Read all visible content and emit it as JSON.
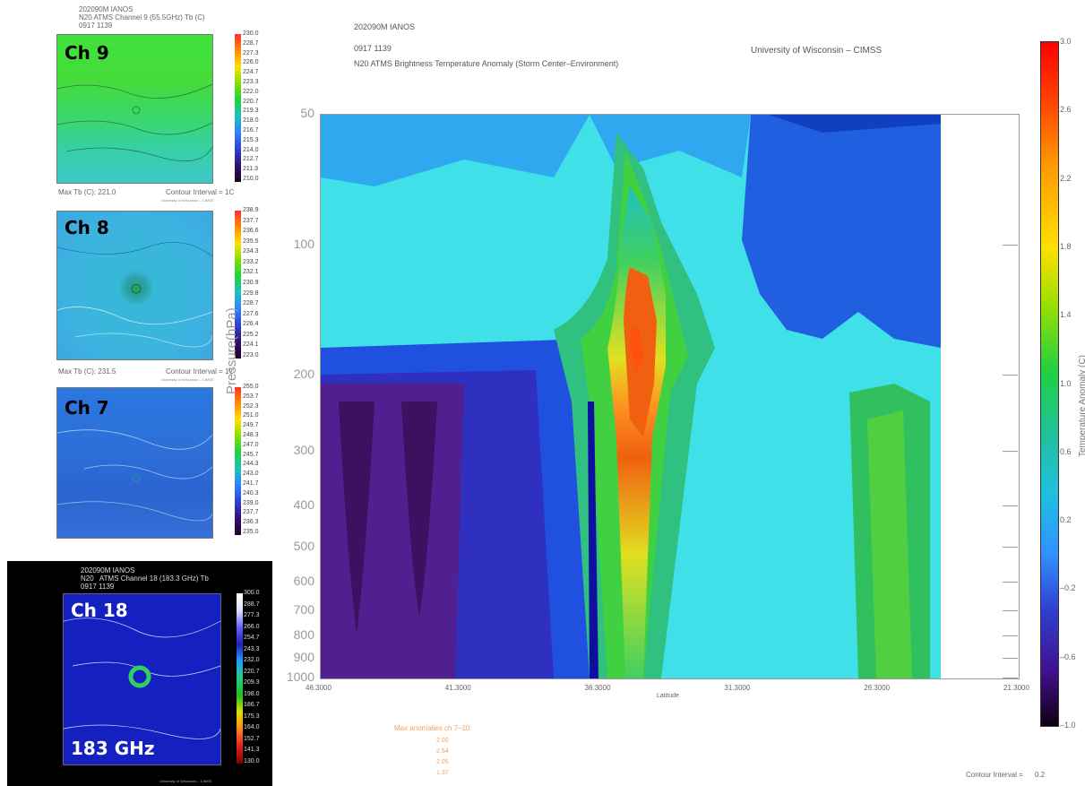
{
  "main": {
    "title_line1": "202090M IANOS",
    "title_line2": "0917 1139",
    "title_line3": "N20 ATMS Brightness Temperature Anomaly (Storm Center–Environment)",
    "institution": "University of Wisconsin – CIMSS",
    "y_axis_title": "Pressure(hPa)",
    "x_axis_title": "Latitude",
    "cb_title": "Temperature Anomaly (C)",
    "contour_label": "Contour Interval =",
    "contour_value": "0.2",
    "max_anom_title": "Max anomalies ch 7–10:",
    "max_anom_values": [
      "2.00",
      "2.54",
      "2.05",
      "1.37"
    ]
  },
  "chart_data": {
    "type": "heatmap",
    "title": "N20 ATMS Brightness Temperature Anomaly (Storm Center–Environment)",
    "xlabel": "Latitude",
    "ylabel": "Pressure(hPa)",
    "x_ticks": [
      "46.3000",
      "41.3000",
      "36.3000",
      "31.3000",
      "26.3000",
      "21.3000"
    ],
    "y_ticks": [
      "50",
      "100",
      "200",
      "300",
      "400",
      "500",
      "600",
      "700",
      "800",
      "900",
      "1000"
    ],
    "y_scale": "log",
    "colorbar_ticks": [
      "3.0",
      "2.6",
      "2.2",
      "1.8",
      "1.4",
      "1.0",
      "0.6",
      "0.2",
      "–0.2",
      "–0.6",
      "–1.0"
    ],
    "colorbar_range": [
      -1.0,
      3.0
    ],
    "colorbar_label": "Temperature Anomaly (C)",
    "peak_anomaly_approx": {
      "latitude": 35.3,
      "pressure_hPa": 250,
      "value": 2.4
    }
  },
  "panels": [
    {
      "label": "Ch 9",
      "header": "202090M IANOS\nN20 ATMS Channel 9 (55.5GHz) Tb (C)\n0917 1139",
      "footer_left": "Max Tb (C): 221.0",
      "footer_right": "Contour Interval = 1C",
      "footer_small": "University of Wisconsin – CIMSS",
      "cb_ticks": [
        "230.0",
        "228.7",
        "227.3",
        "226.0",
        "224.7",
        "223.3",
        "222.0",
        "220.7",
        "219.3",
        "218.0",
        "216.7",
        "215.3",
        "214.0",
        "212.7",
        "211.3",
        "210.0"
      ]
    },
    {
      "label": "Ch 8",
      "header": "",
      "footer_left": "Max Tb (C): 231.5",
      "footer_right": "Contour Interval = 1C",
      "footer_small": "University of Wisconsin – CIMSS",
      "cb_ticks": [
        "238.9",
        "237.7",
        "236.6",
        "235.5",
        "234.3",
        "233.2",
        "232.1",
        "230.9",
        "229.8",
        "228.7",
        "227.6",
        "226.4",
        "225.2",
        "224.1",
        "223.0"
      ]
    },
    {
      "label": "Ch 7",
      "header": "",
      "footer_left": "",
      "footer_right": "",
      "footer_small": "",
      "cb_ticks": [
        "255.0",
        "253.7",
        "252.3",
        "251.0",
        "249.7",
        "248.3",
        "247.0",
        "245.7",
        "244.3",
        "243.0",
        "241.7",
        "240.3",
        "239.0",
        "237.7",
        "236.3",
        "235.0"
      ]
    },
    {
      "label": "Ch 18",
      "sub_label": "183 GHz",
      "header": "202090M IANOS\nN20   ATMS Channel 18 (183.3 GHz) Tb\n0917 1139",
      "footer_small": "University of Wisconsin – CIMSS",
      "cb_ticks": [
        "300.0",
        "288.7",
        "277.3",
        "266.0",
        "254.7",
        "243.3",
        "232.0",
        "220.7",
        "209.3",
        "198.0",
        "186.7",
        "175.3",
        "164.0",
        "152.7",
        "141.3",
        "130.0"
      ]
    }
  ]
}
